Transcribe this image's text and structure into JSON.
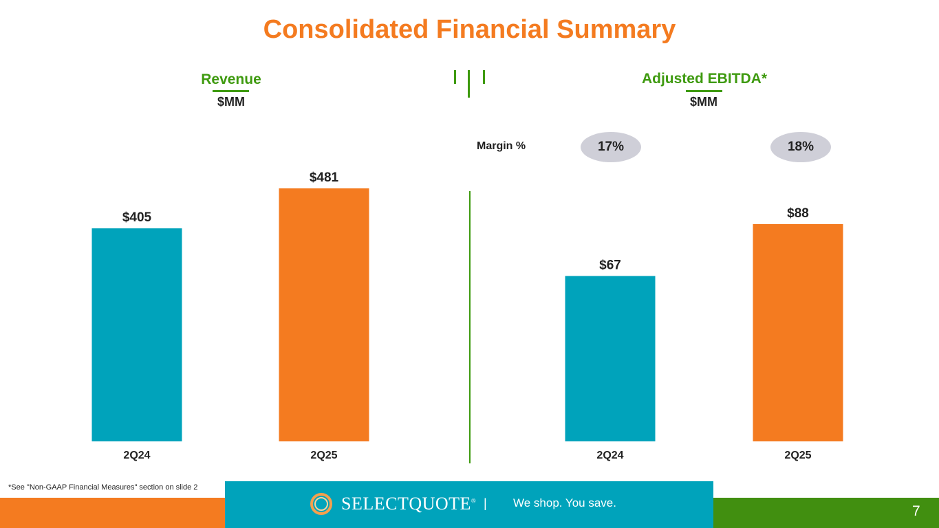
{
  "slide": {
    "title": "Consolidated Financial Summary",
    "footnote": "*See \"Non-GAAP Financial Measures\" section on slide 2",
    "page_number": "7"
  },
  "footer": {
    "brand": "SELECTQUOTE",
    "brand_mark": "®",
    "separator": "|",
    "tagline": "We shop. You save."
  },
  "colors": {
    "orange": "#f47b20",
    "teal": "#00a3bb",
    "green": "#3e9a0f",
    "pill_gray": "#cfcfd8"
  },
  "margin": {
    "label": "Margin %",
    "values": [
      "17%",
      "18%"
    ]
  },
  "chart_data": [
    {
      "type": "bar",
      "title": "Revenue",
      "ylabel": "$MM",
      "categories": [
        "2Q24",
        "2Q25"
      ],
      "values": [
        405,
        481
      ],
      "data_labels": [
        "$405",
        "$481"
      ],
      "ylim": [
        0,
        481
      ]
    },
    {
      "type": "bar",
      "title": "Adjusted EBITDA*",
      "ylabel": "$MM",
      "categories": [
        "2Q24",
        "2Q25"
      ],
      "values": [
        67,
        88
      ],
      "data_labels": [
        "$67",
        "$88"
      ],
      "ylim": [
        0,
        88
      ]
    }
  ]
}
